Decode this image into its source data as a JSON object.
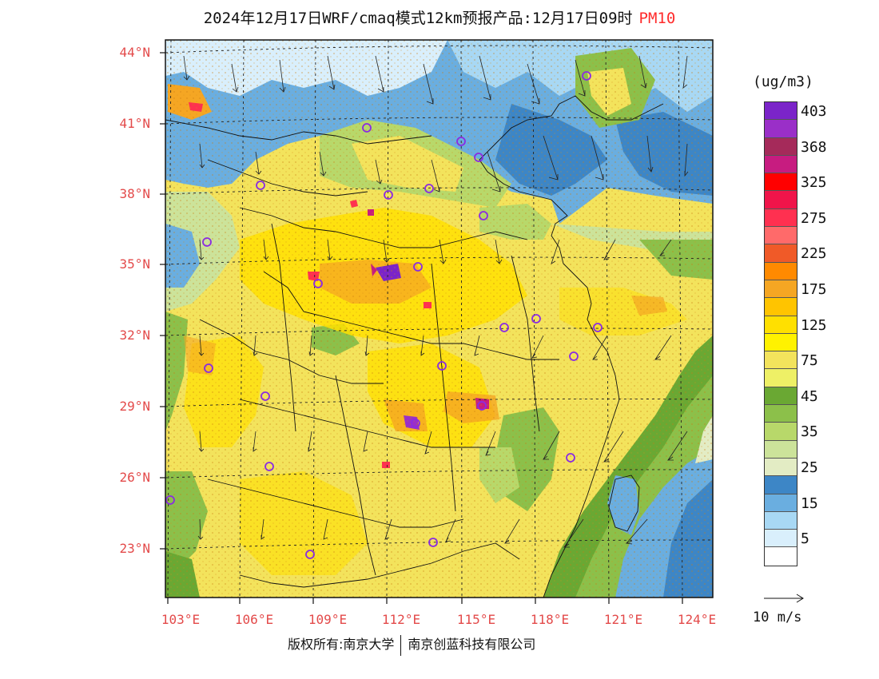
{
  "title": {
    "text": "2024年12月17日WRF/cmaq模式12km预报产品:12月17日09时",
    "pollutant": "PM10"
  },
  "axes": {
    "lat_labels": [
      "44°N",
      "41°N",
      "38°N",
      "35°N",
      "32°N",
      "29°N",
      "26°N",
      "23°N"
    ],
    "lon_labels": [
      "103°E",
      "106°E",
      "109°E",
      "112°E",
      "115°E",
      "118°E",
      "121°E",
      "124°E"
    ]
  },
  "legend": {
    "units": "(ug/m3)",
    "levels": [
      {
        "label": "403",
        "color": "#7b24c9"
      },
      {
        "label": "",
        "color": "#9a2fc8"
      },
      {
        "label": "368",
        "color": "#a52a5a"
      },
      {
        "label": "",
        "color": "#c71c80"
      },
      {
        "label": "325",
        "color": "#ff0000"
      },
      {
        "label": "",
        "color": "#f0144a"
      },
      {
        "label": "275",
        "color": "#ff3050"
      },
      {
        "label": "",
        "color": "#ff6a6a"
      },
      {
        "label": "225",
        "color": "#f05a28"
      },
      {
        "label": "",
        "color": "#ff8a00"
      },
      {
        "label": "175",
        "color": "#f5a623"
      },
      {
        "label": "",
        "color": "#ffc400"
      },
      {
        "label": "125",
        "color": "#ffe000"
      },
      {
        "label": "",
        "color": "#fff200"
      },
      {
        "label": "75",
        "color": "#f3e35c"
      },
      {
        "label": "",
        "color": "#eef066"
      },
      {
        "label": "45",
        "color": "#6aa833"
      },
      {
        "label": "",
        "color": "#8cc04a"
      },
      {
        "label": "35",
        "color": "#b8d86a"
      },
      {
        "label": "",
        "color": "#cce39a"
      },
      {
        "label": "25",
        "color": "#e3ecc4"
      },
      {
        "label": "",
        "color": "#3d86c6"
      },
      {
        "label": "15",
        "color": "#6aaee0"
      },
      {
        "label": "",
        "color": "#a8d8f4"
      },
      {
        "label": "5",
        "color": "#d9effc"
      },
      {
        "label": "",
        "color": "#ffffff"
      }
    ]
  },
  "wind_reference": "10 m/s",
  "copyright": {
    "prefix": "版权所有:南京大学",
    "company": "南京创蓝科技有限公司"
  }
}
